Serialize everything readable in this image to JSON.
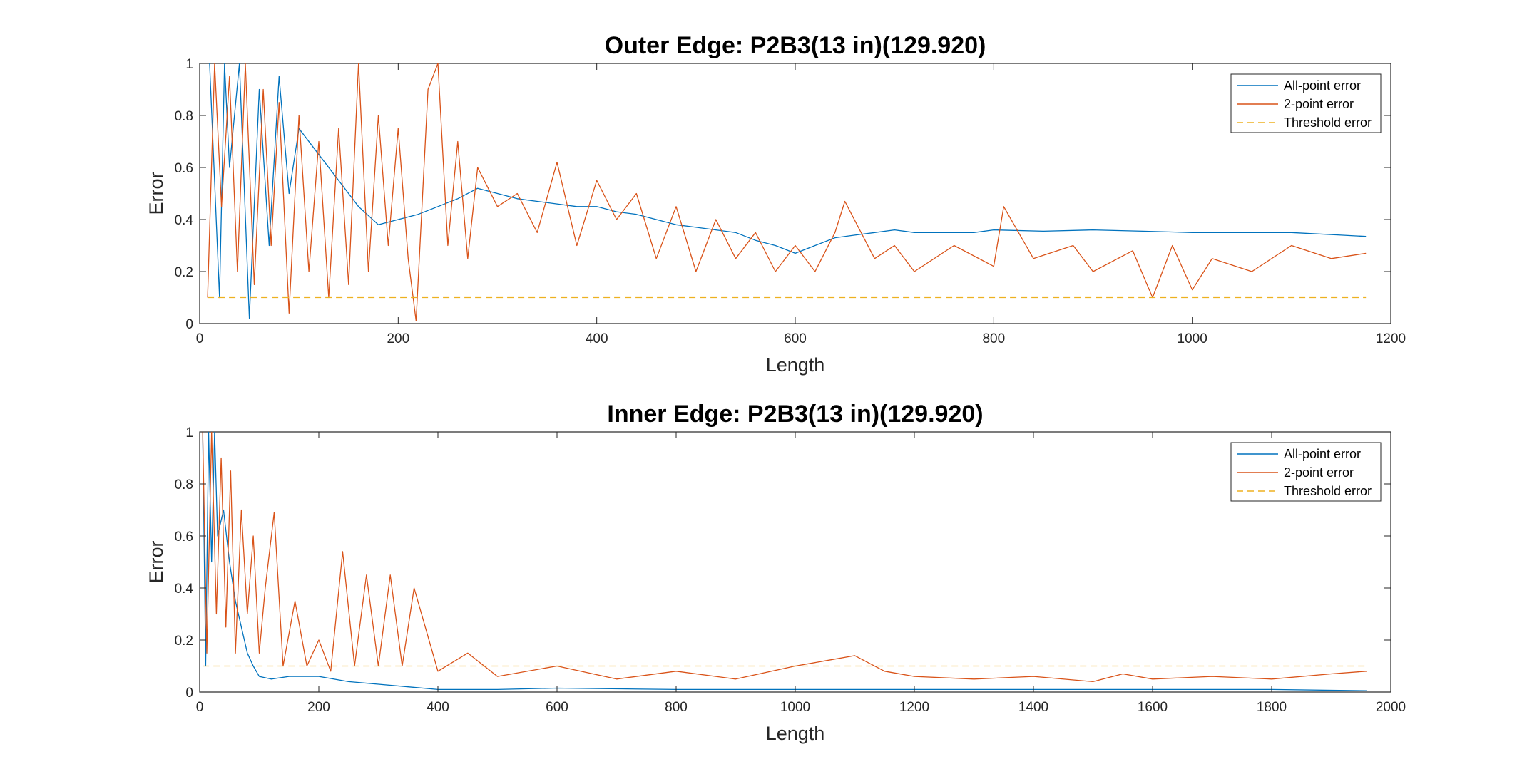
{
  "chart_data": [
    {
      "type": "line",
      "title": "Outer Edge: P2B3(13 in)(129.920)",
      "xlabel": "Length",
      "ylabel": "Error",
      "xlim": [
        0,
        1200
      ],
      "ylim": [
        0,
        1
      ],
      "xticks": [
        "0",
        "200",
        "400",
        "600",
        "800",
        "1000",
        "1200"
      ],
      "yticks": [
        "0",
        "0.2",
        "0.4",
        "0.6",
        "0.8",
        "1"
      ],
      "grid": false,
      "legend_position": "top-right",
      "series": [
        {
          "name": "All-point error",
          "color": "#0072BD",
          "style": "solid",
          "x": [
            10,
            20,
            25,
            30,
            40,
            50,
            60,
            70,
            80,
            90,
            100,
            120,
            140,
            160,
            180,
            200,
            220,
            240,
            260,
            280,
            300,
            320,
            340,
            360,
            380,
            400,
            420,
            440,
            460,
            480,
            500,
            520,
            540,
            560,
            580,
            600,
            620,
            640,
            660,
            680,
            700,
            720,
            740,
            760,
            780,
            800,
            850,
            900,
            950,
            1000,
            1050,
            1100,
            1150,
            1175
          ],
          "y": [
            1.0,
            0.1,
            1.0,
            0.6,
            1.0,
            0.02,
            0.9,
            0.3,
            0.95,
            0.5,
            0.75,
            0.65,
            0.55,
            0.45,
            0.38,
            0.4,
            0.42,
            0.45,
            0.48,
            0.52,
            0.5,
            0.48,
            0.47,
            0.46,
            0.45,
            0.45,
            0.43,
            0.42,
            0.4,
            0.38,
            0.37,
            0.36,
            0.35,
            0.32,
            0.3,
            0.27,
            0.3,
            0.33,
            0.34,
            0.35,
            0.36,
            0.35,
            0.35,
            0.35,
            0.35,
            0.36,
            0.355,
            0.36,
            0.355,
            0.35,
            0.35,
            0.35,
            0.34,
            0.335
          ]
        },
        {
          "name": "2-point error",
          "color": "#D95319",
          "style": "solid",
          "x": [
            8,
            15,
            22,
            30,
            38,
            46,
            55,
            64,
            72,
            80,
            90,
            100,
            110,
            120,
            130,
            140,
            150,
            160,
            170,
            180,
            190,
            200,
            210,
            218,
            230,
            240,
            250,
            260,
            270,
            280,
            300,
            320,
            340,
            360,
            380,
            400,
            420,
            440,
            460,
            480,
            500,
            520,
            540,
            560,
            580,
            600,
            620,
            640,
            650,
            680,
            700,
            720,
            760,
            800,
            810,
            840,
            880,
            900,
            940,
            960,
            980,
            1000,
            1020,
            1060,
            1100,
            1140,
            1175
          ],
          "y": [
            0.1,
            1.0,
            0.45,
            0.95,
            0.2,
            1.0,
            0.15,
            0.9,
            0.3,
            0.85,
            0.04,
            0.8,
            0.2,
            0.7,
            0.1,
            0.75,
            0.15,
            1.0,
            0.2,
            0.8,
            0.3,
            0.75,
            0.25,
            0.01,
            0.9,
            1.0,
            0.3,
            0.7,
            0.25,
            0.6,
            0.45,
            0.5,
            0.35,
            0.62,
            0.3,
            0.55,
            0.4,
            0.5,
            0.25,
            0.45,
            0.2,
            0.4,
            0.25,
            0.35,
            0.2,
            0.3,
            0.2,
            0.35,
            0.47,
            0.25,
            0.3,
            0.2,
            0.3,
            0.22,
            0.45,
            0.25,
            0.3,
            0.2,
            0.28,
            0.1,
            0.3,
            0.13,
            0.25,
            0.2,
            0.3,
            0.25,
            0.27
          ]
        },
        {
          "name": "Threshold error",
          "color": "#EDB120",
          "style": "dashed",
          "x": [
            8,
            1175
          ],
          "y": [
            0.1,
            0.1
          ]
        }
      ]
    },
    {
      "type": "line",
      "title": "Inner Edge: P2B3(13 in)(129.920)",
      "xlabel": "Length",
      "ylabel": "Error",
      "xlim": [
        0,
        2000
      ],
      "ylim": [
        0,
        1
      ],
      "xticks": [
        "0",
        "200",
        "400",
        "600",
        "800",
        "1000",
        "1200",
        "1400",
        "1600",
        "1800",
        "2000"
      ],
      "yticks": [
        "0",
        "0.2",
        "0.4",
        "0.6",
        "0.8",
        "1"
      ],
      "grid": false,
      "legend_position": "top-right",
      "series": [
        {
          "name": "All-point error",
          "color": "#0072BD",
          "style": "solid",
          "x": [
            5,
            10,
            15,
            20,
            25,
            30,
            40,
            50,
            60,
            70,
            80,
            90,
            100,
            120,
            150,
            200,
            250,
            300,
            350,
            400,
            500,
            600,
            800,
            1000,
            1200,
            1400,
            1600,
            1800,
            1960
          ],
          "y": [
            1.0,
            0.1,
            1.0,
            0.5,
            1.0,
            0.6,
            0.7,
            0.5,
            0.35,
            0.25,
            0.15,
            0.1,
            0.06,
            0.05,
            0.06,
            0.06,
            0.04,
            0.03,
            0.02,
            0.01,
            0.01,
            0.015,
            0.01,
            0.01,
            0.01,
            0.01,
            0.01,
            0.01,
            0.005
          ]
        },
        {
          "name": "2-point error",
          "color": "#D95319",
          "style": "solid",
          "x": [
            5,
            12,
            20,
            28,
            36,
            44,
            52,
            60,
            70,
            80,
            90,
            100,
            110,
            125,
            140,
            160,
            180,
            200,
            220,
            240,
            260,
            280,
            300,
            320,
            340,
            360,
            400,
            450,
            500,
            600,
            700,
            800,
            900,
            1000,
            1050,
            1100,
            1150,
            1200,
            1300,
            1400,
            1500,
            1550,
            1600,
            1700,
            1800,
            1900,
            1960
          ],
          "y": [
            1.0,
            0.15,
            1.0,
            0.3,
            0.9,
            0.25,
            0.85,
            0.15,
            0.7,
            0.3,
            0.6,
            0.15,
            0.4,
            0.69,
            0.1,
            0.35,
            0.1,
            0.2,
            0.08,
            0.54,
            0.1,
            0.45,
            0.1,
            0.45,
            0.1,
            0.4,
            0.08,
            0.15,
            0.06,
            0.1,
            0.05,
            0.08,
            0.05,
            0.1,
            0.12,
            0.14,
            0.08,
            0.06,
            0.05,
            0.06,
            0.04,
            0.07,
            0.05,
            0.06,
            0.05,
            0.07,
            0.08
          ]
        },
        {
          "name": "Threshold error",
          "color": "#EDB120",
          "style": "dashed",
          "x": [
            5,
            1960
          ],
          "y": [
            0.1,
            0.1
          ]
        }
      ]
    }
  ]
}
